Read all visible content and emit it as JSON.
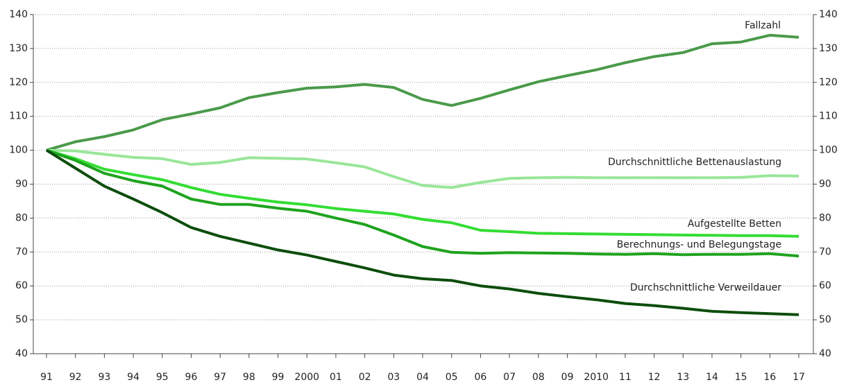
{
  "chart_data": {
    "type": "line",
    "categories": [
      "91",
      "92",
      "93",
      "94",
      "95",
      "96",
      "97",
      "98",
      "99",
      "2000",
      "01",
      "02",
      "03",
      "04",
      "05",
      "06",
      "07",
      "08",
      "09",
      "2010",
      "11",
      "12",
      "13",
      "14",
      "15",
      "16",
      "17"
    ],
    "ylim": [
      40,
      140
    ],
    "yticks": [
      40,
      50,
      60,
      70,
      80,
      90,
      100,
      110,
      120,
      130,
      140
    ],
    "grid": true,
    "series": [
      {
        "name": "Fallzahl",
        "color": "#4a9a4a",
        "values": [
          100,
          102.5,
          104,
          106,
          109,
          110.7,
          112.5,
          115.5,
          117,
          118.3,
          118.7,
          119.4,
          118.5,
          115,
          113.2,
          115.3,
          117.8,
          120.2,
          122,
          123.7,
          125.8,
          127.6,
          128.8,
          131.4,
          131.9,
          133.9,
          133.3
        ]
      },
      {
        "name": "Durchschnittliche Bettenauslastung",
        "color": "#99e699",
        "values": [
          100,
          99.8,
          98.8,
          97.9,
          97.5,
          95.8,
          96.4,
          97.8,
          97.6,
          97.4,
          96.3,
          95.1,
          92.2,
          89.6,
          89,
          90.5,
          91.7,
          91.9,
          92,
          91.9,
          91.9,
          91.9,
          91.9,
          91.9,
          92,
          92.5,
          92.4
        ]
      },
      {
        "name": "Aufgestellte Betten",
        "color": "#33dd33",
        "values": [
          100,
          97.5,
          94.4,
          92.8,
          91.3,
          89,
          87,
          85.8,
          84.7,
          83.9,
          82.8,
          82,
          81.2,
          79.6,
          78.6,
          76.4,
          76,
          75.5,
          75.4,
          75.3,
          75.2,
          75.1,
          75,
          74.9,
          74.8,
          74.8,
          74.6
        ]
      },
      {
        "name": "Berechnungs- und Belegungstage",
        "color": "#1ea31e",
        "values": [
          100,
          97,
          93.2,
          91,
          89.4,
          85.6,
          84,
          84,
          82.9,
          82,
          80,
          78.1,
          75,
          71.6,
          69.9,
          69.6,
          69.8,
          69.7,
          69.6,
          69.4,
          69.3,
          69.5,
          69.2,
          69.3,
          69.3,
          69.5,
          68.8
        ]
      },
      {
        "name": "Durchschnittliche Verweildauer",
        "color": "#0d4d0d",
        "values": [
          100,
          94.7,
          89.4,
          85.6,
          81.6,
          77.2,
          74.6,
          72.6,
          70.6,
          69.1,
          67.2,
          65.3,
          63.2,
          62.1,
          61.6,
          60,
          59.1,
          57.8,
          56.8,
          55.9,
          54.8,
          54.2,
          53.4,
          52.5,
          52.1,
          51.8,
          51.5
        ]
      }
    ]
  }
}
